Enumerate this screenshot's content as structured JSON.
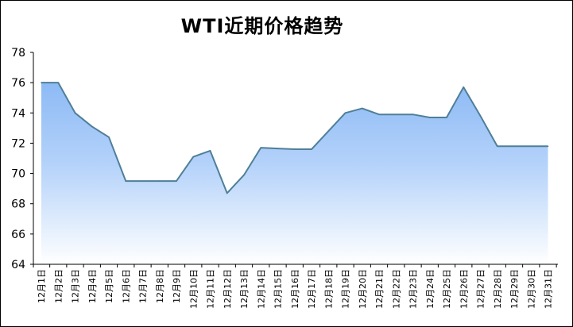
{
  "chart_data": {
    "type": "area",
    "title": "WTI近期价格趋势",
    "xlabel": "",
    "ylabel": "",
    "ylim": [
      64,
      78
    ],
    "yticks": [
      64,
      66,
      68,
      70,
      72,
      74,
      76,
      78
    ],
    "grid": false,
    "legend": "none",
    "categories": [
      "12月1日",
      "12月2日",
      "12月3日",
      "12月4日",
      "12月5日",
      "12月6日",
      "12月7日",
      "12月8日",
      "12月9日",
      "12月10日",
      "12月11日",
      "12月12日",
      "12月13日",
      "12月14日",
      "12月15日",
      "12月16日",
      "12月17日",
      "12月18日",
      "12月19日",
      "12月20日",
      "12月21日",
      "12月22日",
      "12月23日",
      "12月24日",
      "12月25日",
      "12月26日",
      "12月27日",
      "12月28日",
      "12月29日",
      "12月30日",
      "12月31日"
    ],
    "values": [
      76.0,
      76.0,
      74.0,
      73.1,
      72.4,
      69.5,
      69.5,
      69.5,
      69.5,
      71.1,
      71.5,
      68.7,
      69.9,
      71.7,
      71.65,
      71.6,
      71.6,
      72.8,
      74.0,
      74.3,
      73.9,
      73.9,
      73.9,
      73.7,
      73.7,
      75.7,
      73.8,
      71.8,
      71.8,
      71.8,
      71.8
    ],
    "colors": {
      "line": "#4f7f98",
      "fill_top": "#8dbaf5",
      "fill_bottom": "#ffffff",
      "axis": "#000000"
    }
  }
}
